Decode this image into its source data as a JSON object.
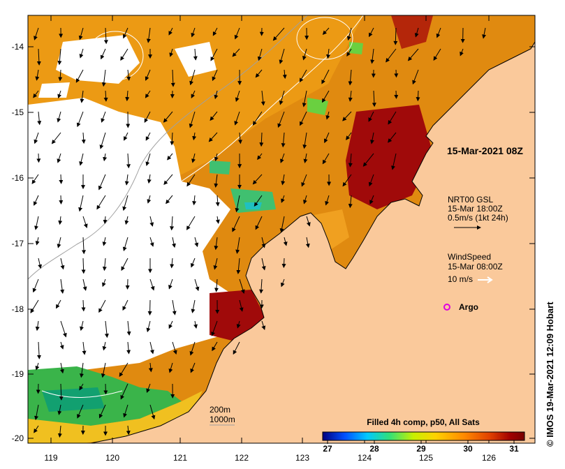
{
  "map": {
    "x_ticks": [
      "119",
      "120",
      "121",
      "122",
      "123",
      "124",
      "125",
      "126"
    ],
    "y_ticks": [
      "-14",
      "-15",
      "-16",
      "-17",
      "-18",
      "-19",
      "-20"
    ],
    "colors": {
      "land": "#fac99b",
      "no_data": "#ffffff",
      "warm": "#e08a10",
      "hot": "#a00a0a",
      "cool": "#2fb04f",
      "ocean_mid": "#f3b01a"
    }
  },
  "labels": {
    "timestamp": "15-Mar-2021 08Z",
    "currents_title": "NRT00 GSL",
    "currents_time": "15-Mar 18:00Z",
    "currents_scale": "0.5m/s (1kt 24h)",
    "wind_title": "WindSpeed",
    "wind_time": "15-Mar 08:00Z",
    "wind_scale": "10 m/s",
    "argo_label": "Argo",
    "contour_200": "200m",
    "contour_1000": "1000m",
    "credit": "© IMOS 19-Mar-2021 12:09 Hobart"
  },
  "colorbar": {
    "title": "Filled 4h comp, p50, All Sats",
    "ticks": [
      "27",
      "28",
      "29",
      "30",
      "31"
    ],
    "stops": [
      "#00007f",
      "#0050ff",
      "#00c8ff",
      "#30e07a",
      "#c8f000",
      "#ffd200",
      "#ff8a00",
      "#e04000",
      "#a00000",
      "#780000"
    ]
  }
}
